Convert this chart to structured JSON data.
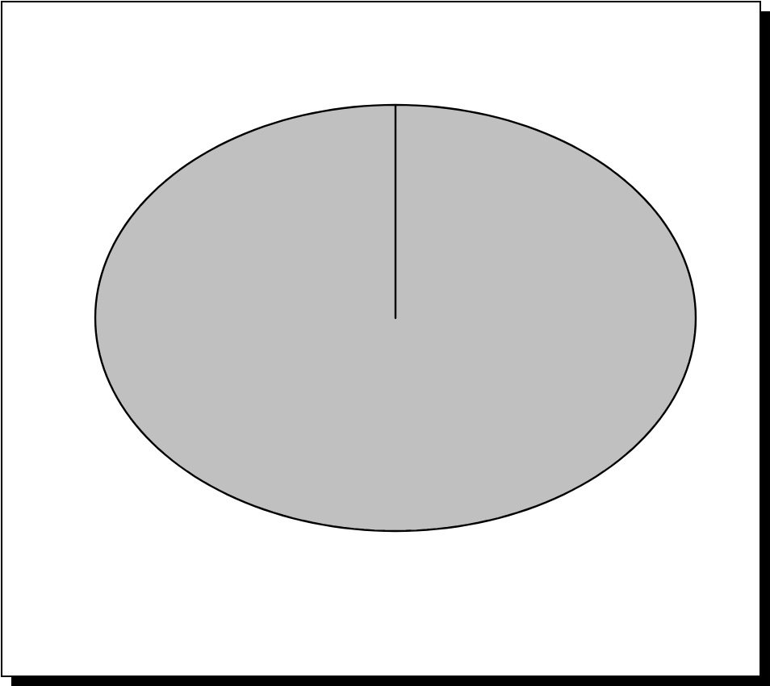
{
  "chart_data": {
    "type": "pie",
    "categories": [
      null
    ],
    "values": [
      100
    ],
    "colors": [
      "#c0c0c0"
    ]
  }
}
